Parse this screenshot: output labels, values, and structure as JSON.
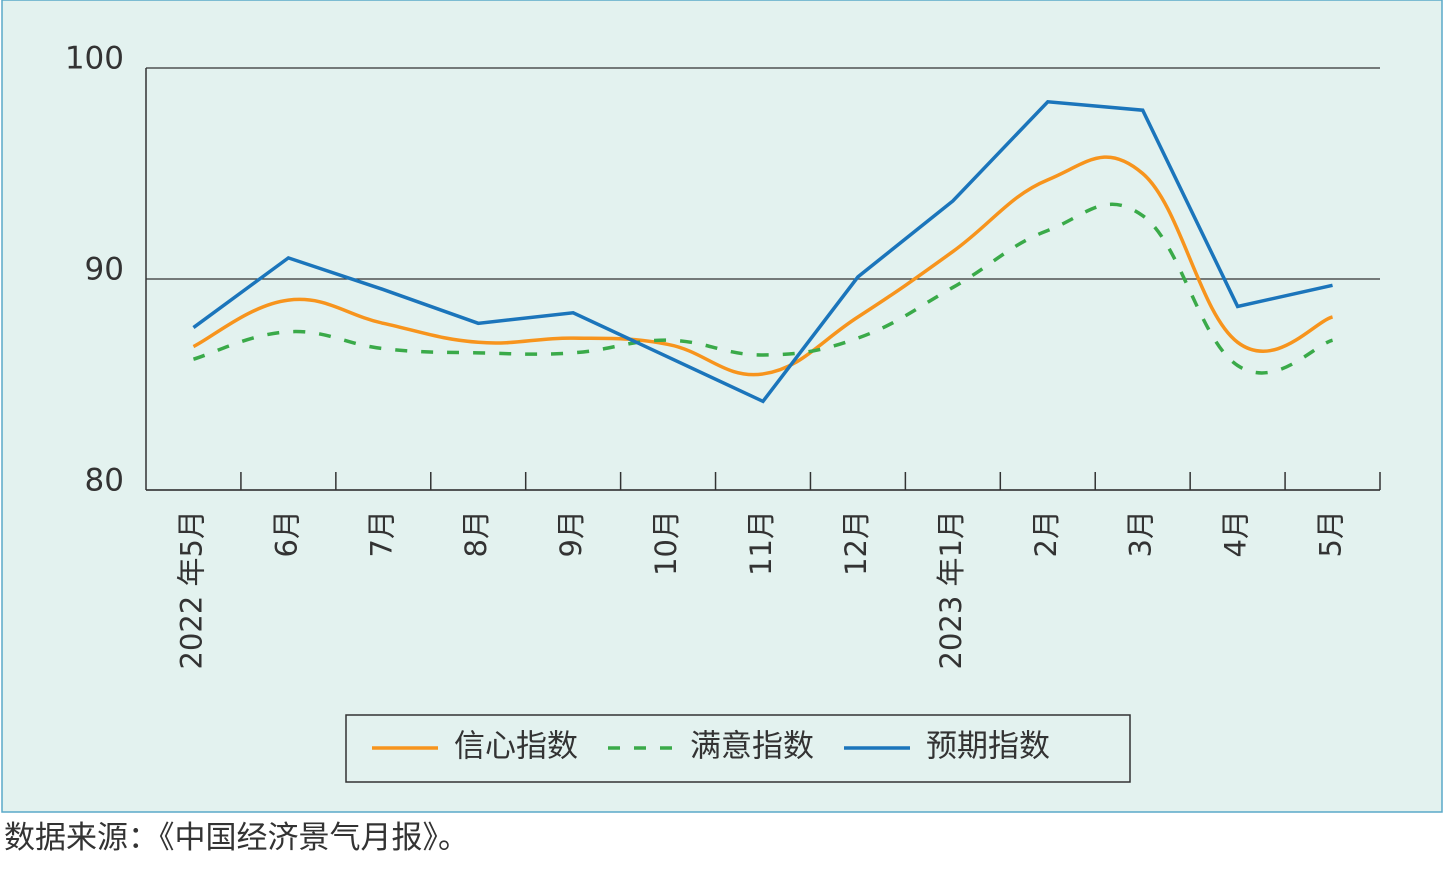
{
  "chart_data": {
    "type": "line",
    "categories": [
      "2022 年5月",
      "6月",
      "7月",
      "8月",
      "9月",
      "10月",
      "11月",
      "12月",
      "2023 年1月",
      "2月",
      "3月",
      "4月",
      "5月"
    ],
    "series": [
      {
        "name": "信心指数",
        "color": "#f7941d",
        "style": "solid",
        "smooth": true,
        "values": [
          86.8,
          89.0,
          87.9,
          87.0,
          87.2,
          86.9,
          85.5,
          88.2,
          91.3,
          94.7,
          95.0,
          87.0,
          88.2
        ]
      },
      {
        "name": "满意指数",
        "color": "#3aaa49",
        "style": "dashed",
        "smooth": true,
        "values": [
          86.2,
          87.5,
          86.7,
          86.5,
          86.5,
          87.1,
          86.4,
          87.2,
          89.6,
          92.3,
          93.0,
          85.9,
          87.1
        ]
      },
      {
        "name": "预期指数",
        "color": "#1b75bb",
        "style": "solid",
        "smooth": false,
        "values": [
          87.7,
          91.0,
          89.5,
          87.9,
          88.4,
          86.3,
          84.2,
          90.1,
          93.7,
          98.4,
          98.0,
          88.7,
          89.7
        ]
      }
    ],
    "ylim": [
      80,
      100
    ],
    "yticks": [
      80,
      90,
      100
    ],
    "grid": true,
    "legend": "bottom",
    "source": "数据来源：《中国经济景气月报》。"
  }
}
